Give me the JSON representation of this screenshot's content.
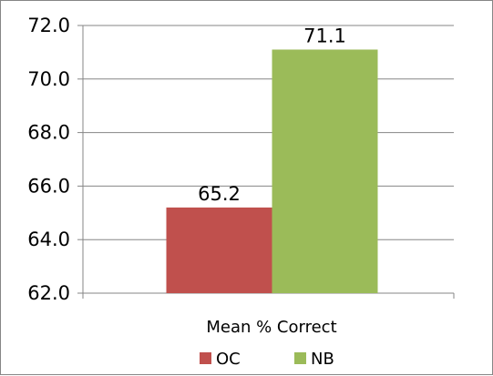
{
  "chart_data": {
    "type": "bar",
    "categories": [
      "Mean % Correct"
    ],
    "series": [
      {
        "name": "OC",
        "values": [
          65.2
        ],
        "color": "#c0504d"
      },
      {
        "name": "NB",
        "values": [
          71.1
        ],
        "color": "#9bbb59"
      }
    ],
    "data_labels": [
      "65.2",
      "71.1"
    ],
    "ylim": [
      62.0,
      72.0
    ],
    "yticks": [
      "62.0",
      "64.0",
      "66.0",
      "68.0",
      "70.0",
      "72.0"
    ],
    "grid": true,
    "legend_position": "bottom",
    "title": "",
    "xlabel": "",
    "ylabel": ""
  }
}
